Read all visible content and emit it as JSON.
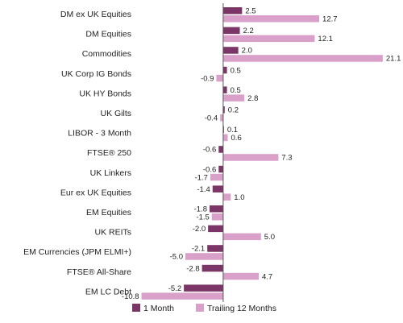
{
  "chart_data": {
    "type": "bar",
    "orientation": "horizontal",
    "categories": [
      "DM ex UK Equities",
      "DM Equities",
      "Commodities",
      "UK Corp IG Bonds",
      "UK HY Bonds",
      "UK Gilts",
      "LIBOR - 3 Month",
      "FTSE® 250",
      "UK Linkers",
      "Eur ex UK Equities",
      "EM Equities",
      "UK REITs",
      "EM Currencies (JPM ELMI+)",
      "FTSE® All-Share",
      "EM LC Debt"
    ],
    "series": [
      {
        "name": "1 Month",
        "color": "#7b3566",
        "values": [
          2.5,
          2.2,
          2.0,
          0.5,
          0.5,
          0.2,
          0.1,
          -0.6,
          -0.6,
          -1.4,
          -1.8,
          -2.0,
          -2.1,
          -2.8,
          -5.2
        ],
        "labels": [
          "2.5",
          "2.2",
          "2.0",
          "0.5",
          "0.5",
          "0.2",
          "0.1",
          "-0.6",
          "-0.6",
          "-1.4",
          "-1.8",
          "-2.0",
          "-2.1",
          "-2.8",
          "-5.2"
        ]
      },
      {
        "name": "Trailing 12 Months",
        "color": "#d9a0c9",
        "values": [
          12.7,
          12.1,
          21.1,
          -0.9,
          2.8,
          -0.4,
          0.6,
          7.3,
          -1.7,
          1.0,
          -1.5,
          5.0,
          -5.0,
          4.7,
          -10.8
        ],
        "labels": [
          "12.7",
          "12.1",
          "21.1",
          "-0.9",
          "2.8",
          "-0.4",
          "0.6",
          "7.3",
          "-1.7",
          "1.0",
          "-1.5",
          "5.0",
          "-5.0",
          "4.7",
          "-10.8"
        ]
      }
    ],
    "xlim": [
      -11.5,
      22.5
    ],
    "grid": false,
    "legend_position": "bottom"
  }
}
